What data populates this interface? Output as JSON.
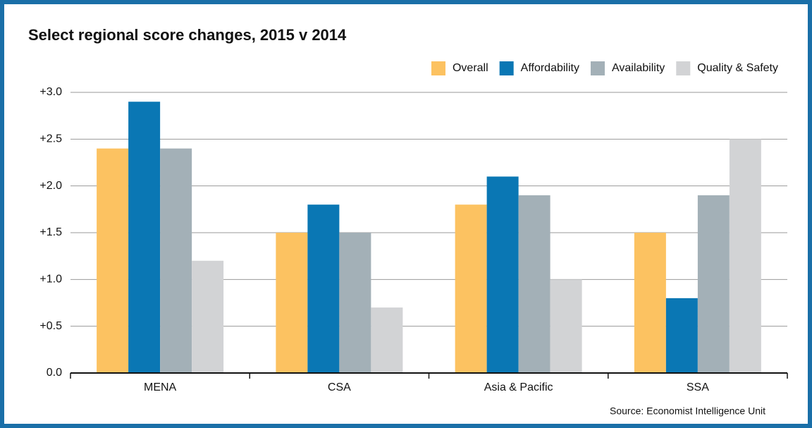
{
  "chart_data": {
    "type": "bar",
    "title": "Select regional score changes, 2015 v 2014",
    "categories": [
      "MENA",
      "CSA",
      "Asia & Pacific",
      "SSA"
    ],
    "series": [
      {
        "name": "Overall",
        "color": "#fcc261",
        "values": [
          2.4,
          1.5,
          1.8,
          1.5
        ]
      },
      {
        "name": "Affordability",
        "color": "#0a77b4",
        "values": [
          2.9,
          1.8,
          2.1,
          0.8
        ]
      },
      {
        "name": "Availability",
        "color": "#a3b0b7",
        "values": [
          2.4,
          1.5,
          1.9,
          1.9
        ]
      },
      {
        "name": "Quality & Safety",
        "color": "#d2d3d5",
        "values": [
          1.2,
          0.7,
          1.0,
          2.5
        ]
      }
    ],
    "ylim": [
      0,
      3
    ],
    "yticks": [
      {
        "value": 0,
        "label": "0.0"
      },
      {
        "value": 0.5,
        "label": "+0.5"
      },
      {
        "value": 1,
        "label": "+1.0"
      },
      {
        "value": 1.5,
        "label": "+1.5"
      },
      {
        "value": 2,
        "label": "+2.0"
      },
      {
        "value": 2.5,
        "label": "+2.5"
      },
      {
        "value": 3,
        "label": "+3.0"
      }
    ],
    "grid": true,
    "legend": "top-right",
    "source": "Source: Economist Intelligence Unit"
  }
}
